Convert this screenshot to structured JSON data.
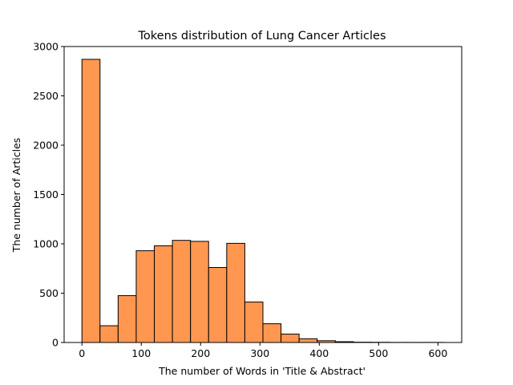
{
  "chart_data": {
    "type": "bar",
    "title": "Tokens distribution of Lung Cancer Articles",
    "xlabel": "The number of Words in  'Title & Abstract'",
    "ylabel": "The number of Articles",
    "bar_color": "#ff9751",
    "edge_color": "#000000",
    "xlim": [
      -30,
      640
    ],
    "ylim": [
      0,
      3000
    ],
    "x_ticks": [
      0,
      100,
      200,
      300,
      400,
      500,
      600
    ],
    "y_ticks": [
      0,
      500,
      1000,
      1500,
      2000,
      2500,
      3000
    ],
    "bins": [
      {
        "start": 0,
        "end": 30.5,
        "value": 2870
      },
      {
        "start": 30.5,
        "end": 61,
        "value": 170
      },
      {
        "start": 61,
        "end": 91.5,
        "value": 475
      },
      {
        "start": 91.5,
        "end": 122,
        "value": 930
      },
      {
        "start": 122,
        "end": 152.5,
        "value": 980
      },
      {
        "start": 152.5,
        "end": 183,
        "value": 1035
      },
      {
        "start": 183,
        "end": 213.5,
        "value": 1025
      },
      {
        "start": 213.5,
        "end": 244,
        "value": 760
      },
      {
        "start": 244,
        "end": 274.5,
        "value": 1005
      },
      {
        "start": 274.5,
        "end": 305,
        "value": 410
      },
      {
        "start": 305,
        "end": 335.5,
        "value": 190
      },
      {
        "start": 335.5,
        "end": 366,
        "value": 85
      },
      {
        "start": 366,
        "end": 396.5,
        "value": 38
      },
      {
        "start": 396.5,
        "end": 427,
        "value": 18
      },
      {
        "start": 427,
        "end": 457.5,
        "value": 8
      },
      {
        "start": 457.5,
        "end": 488,
        "value": 3
      },
      {
        "start": 488,
        "end": 518.5,
        "value": 2
      },
      {
        "start": 518.5,
        "end": 549,
        "value": 1
      },
      {
        "start": 549,
        "end": 579.5,
        "value": 1
      },
      {
        "start": 579.5,
        "end": 610,
        "value": 1
      }
    ]
  }
}
